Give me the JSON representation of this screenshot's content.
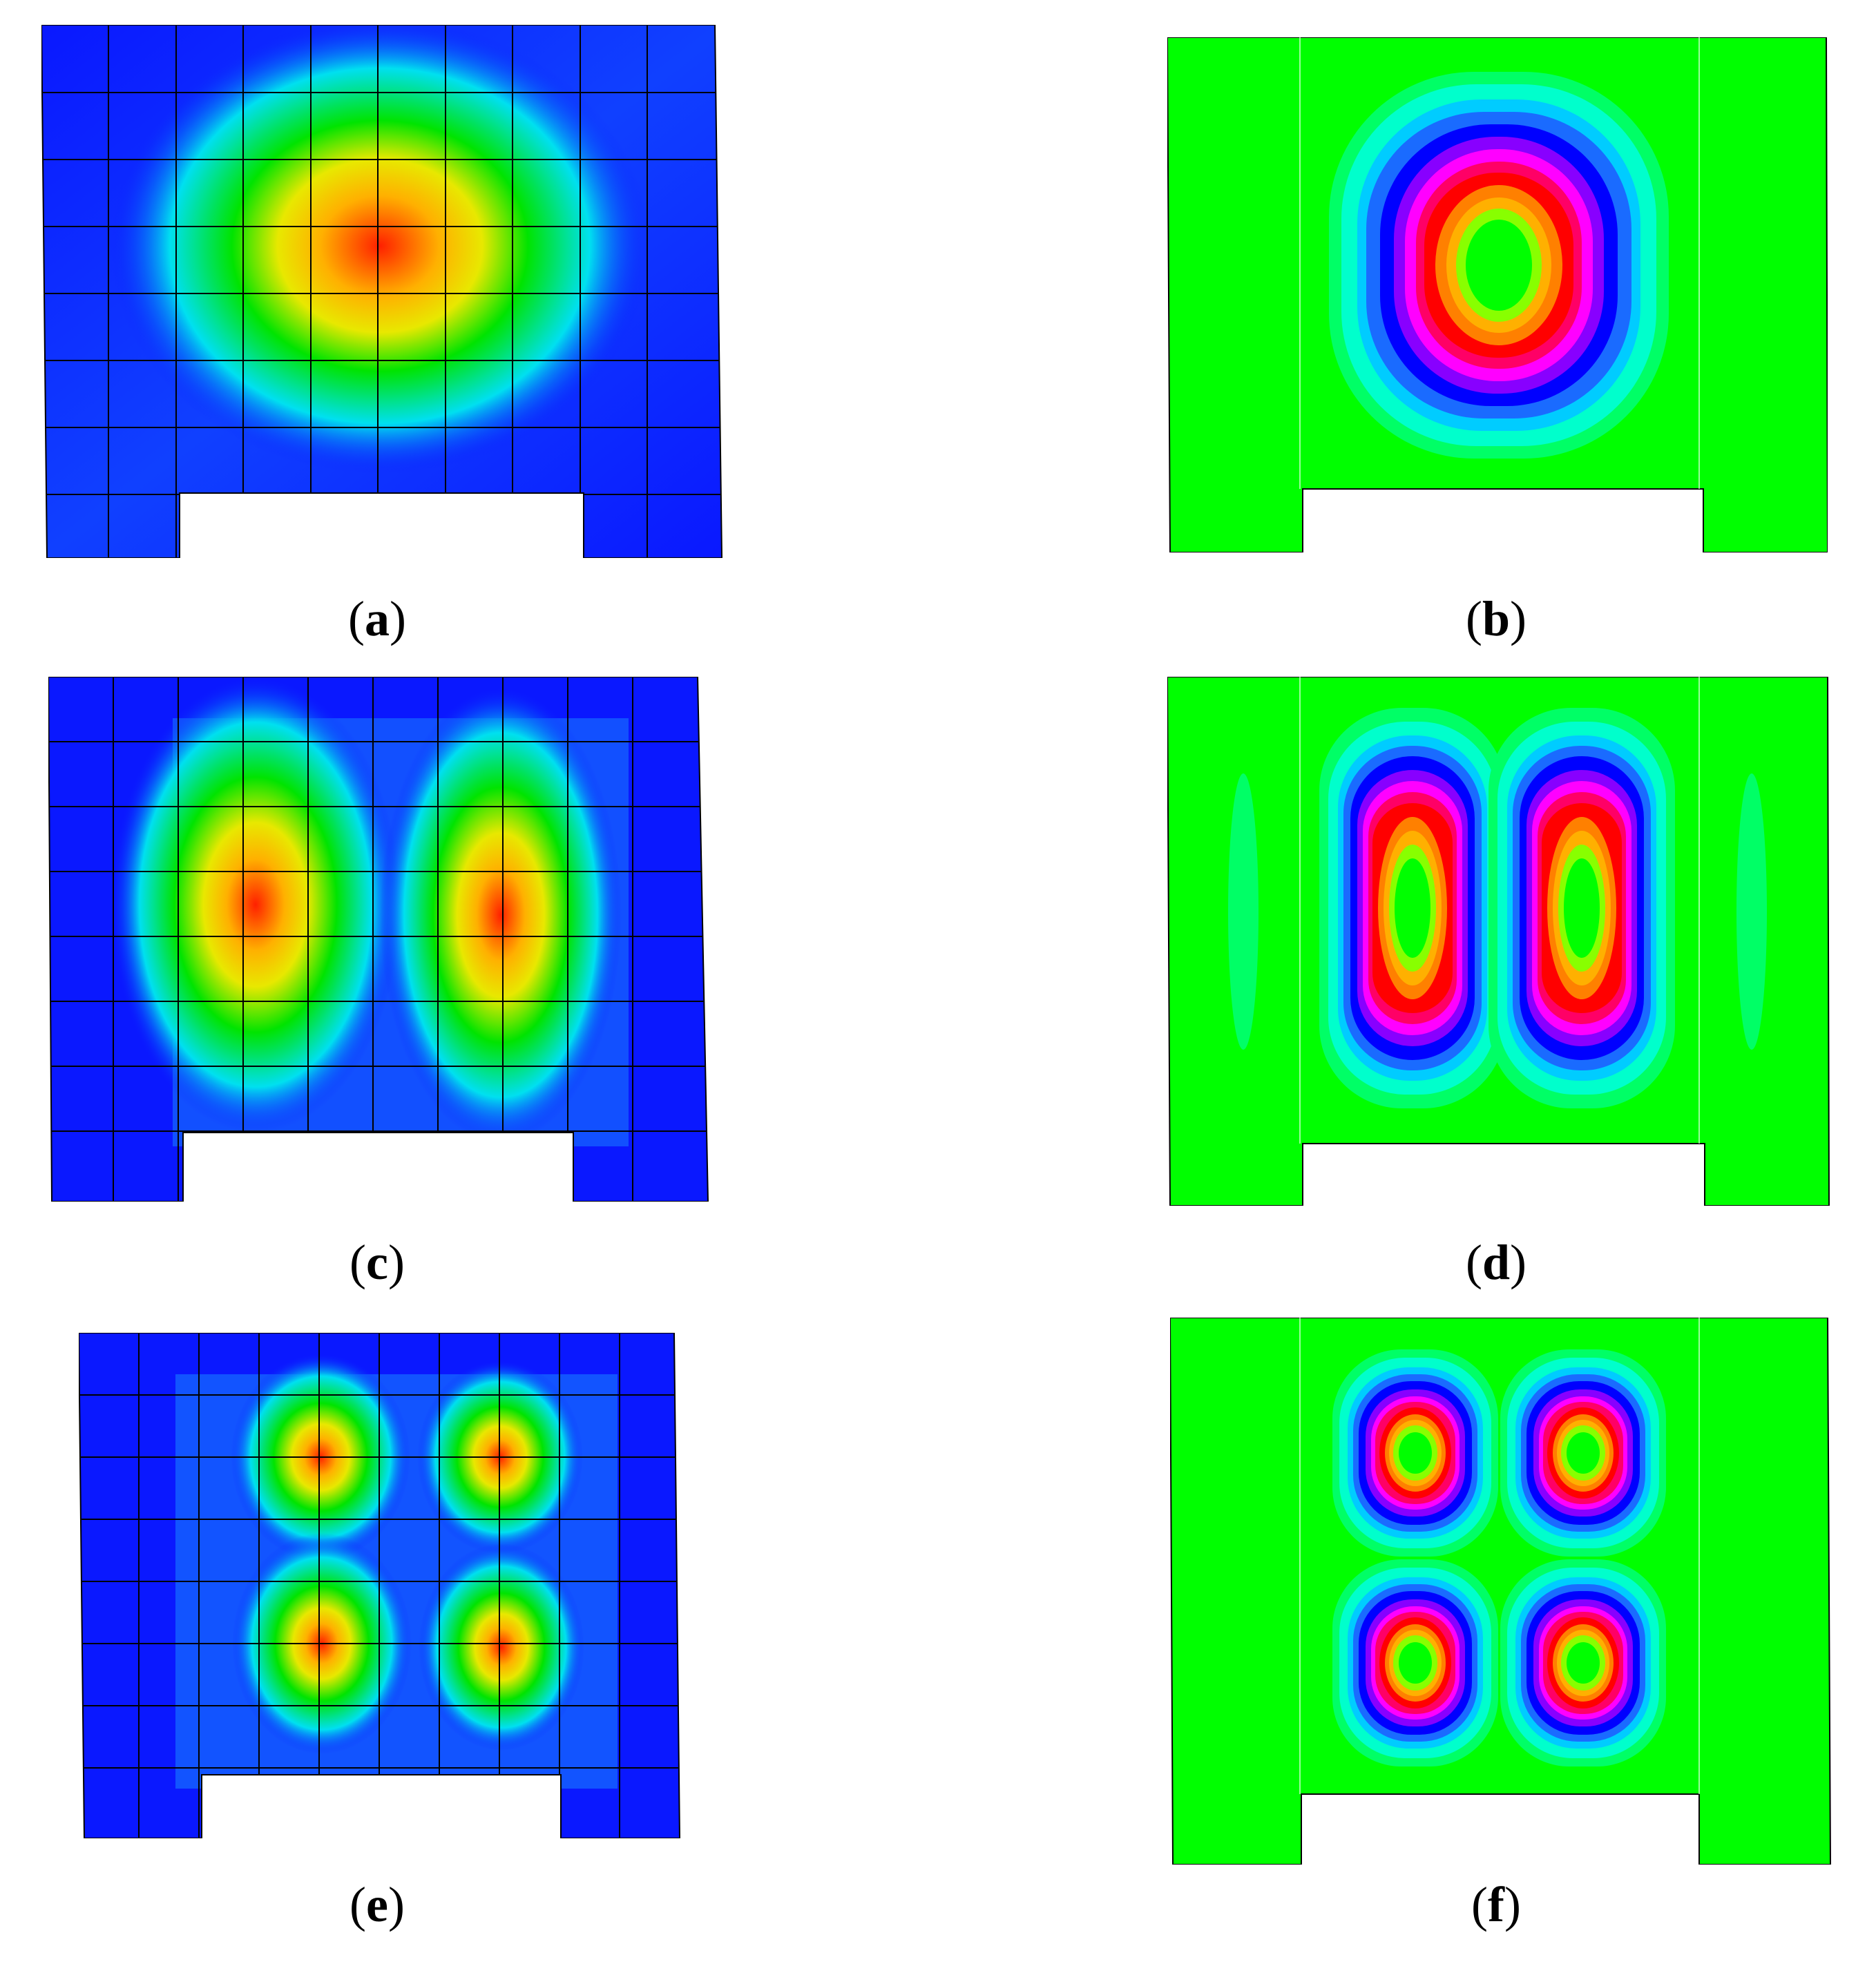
{
  "figure": {
    "panels": [
      {
        "id": "a",
        "label": "a",
        "kind": "fe-mesh-mode",
        "mode": "single-peak",
        "peaks": 1
      },
      {
        "id": "b",
        "label": "b",
        "kind": "analytic-contour-mode",
        "mode": "single-lobe",
        "lobes": 1
      },
      {
        "id": "c",
        "label": "c",
        "kind": "fe-mesh-mode",
        "mode": "two-peaks-horizontal",
        "peaks": 2
      },
      {
        "id": "d",
        "label": "d",
        "kind": "analytic-contour-mode",
        "mode": "two-lobes-horizontal",
        "lobes": 2
      },
      {
        "id": "e",
        "label": "e",
        "kind": "fe-mesh-mode",
        "mode": "four-peaks-grid",
        "peaks": 4
      },
      {
        "id": "f",
        "label": "f",
        "kind": "analytic-contour-mode",
        "mode": "four-lobes-grid",
        "lobes": 4
      }
    ],
    "colors": {
      "mesh_low": "#0a18ff",
      "mesh_mid": "#00e0f0",
      "mesh_green": "#00e400",
      "mesh_peak_yellow": "#e8e800",
      "mesh_peak_red": "#ff2000",
      "contour_background": "#00ff00",
      "contour_rings": [
        "#00ff66",
        "#00ffcc",
        "#00ccff",
        "#1a6bff",
        "#0000ff",
        "#8800ff",
        "#ff00ff",
        "#ff0066",
        "#ff0000",
        "#ff8000",
        "#ffb000",
        "#88ff00",
        "#00ff00"
      ]
    }
  }
}
